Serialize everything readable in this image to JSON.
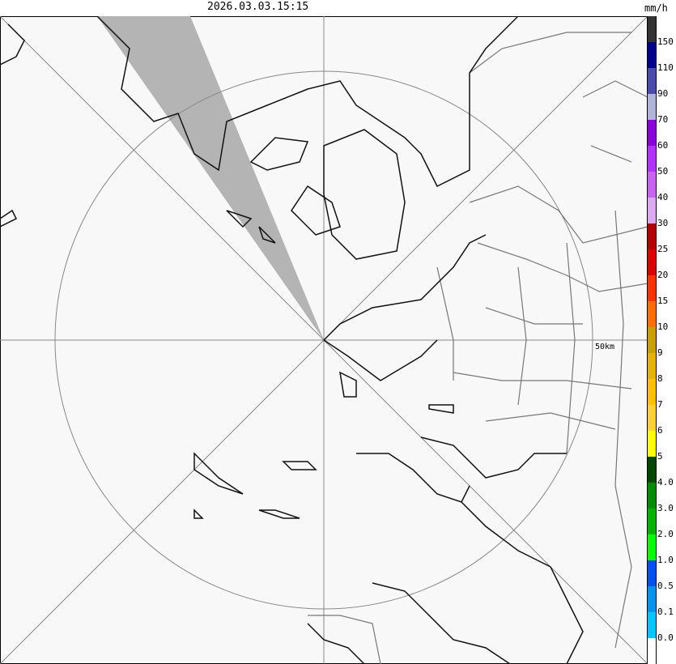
{
  "timestamp": "2026.03.03.15:15",
  "unit": "mm/h",
  "range_ring_label": "50km",
  "legend": {
    "colors": [
      "#333333",
      "#00008c",
      "#4b4bab",
      "#b0b4d8",
      "#8c00dc",
      "#b432ff",
      "#c864f0",
      "#dcaaf0",
      "#b40000",
      "#dc0000",
      "#ff3200",
      "#ff6e00",
      "#c8a000",
      "#e6b400",
      "#ffc000",
      "#ffd232",
      "#ffff00",
      "#004800",
      "#008c00",
      "#00b400",
      "#00ff00",
      "#0050f0",
      "#0096f0",
      "#00c8ff",
      "#ffffff"
    ],
    "labels": [
      "150",
      "110",
      "90",
      "70",
      "60",
      "50",
      "40",
      "30",
      "25",
      "20",
      "15",
      "10",
      "9",
      "8",
      "7",
      "6",
      "5",
      "4.0",
      "3.0",
      "2.0",
      "1.0",
      "0.5",
      "0.1",
      "0.0"
    ]
  },
  "map": {
    "background": "#f8f8f8",
    "blocked_sector_color": "#b4b4b4"
  }
}
